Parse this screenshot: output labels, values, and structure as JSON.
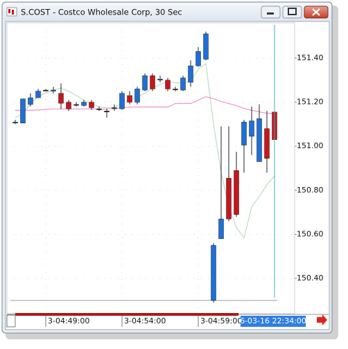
{
  "window_title": "S.COST - Costco Wholesale Corp, 30 Sec",
  "chart_data": {
    "type": "candlestick",
    "categories": [
      null,
      null,
      null,
      null,
      "3-04:49:00",
      null,
      null,
      null,
      null,
      null,
      null,
      null,
      null,
      null,
      "3-04:54:00",
      null,
      null,
      null,
      null,
      null,
      null,
      null,
      null,
      null,
      "3-04:59:00",
      null,
      null,
      null,
      null,
      null,
      null,
      null,
      null,
      null,
      null
    ],
    "open": [
      151.105,
      151.105,
      151.19,
      151.22,
      151.255,
      151.25,
      151.24,
      151.2,
      151.19,
      151.185,
      151.2,
      151.17,
      151.16,
      151.175,
      151.17,
      151.23,
      151.2,
      151.255,
      151.32,
      151.3,
      151.3,
      151.26,
      151.255,
      151.29,
      151.365,
      151.395,
      150.3,
      150.58,
      150.855,
      150.89,
      151.005,
      151.045,
      150.93,
      151.08,
      151.155
    ],
    "high": [
      151.12,
      151.215,
      151.24,
      151.26,
      151.26,
      151.27,
      151.285,
      151.21,
      151.2,
      151.21,
      151.21,
      151.18,
      151.17,
      151.19,
      151.25,
      151.25,
      151.27,
      151.33,
      151.33,
      151.32,
      151.31,
      151.27,
      151.32,
      151.39,
      151.45,
      151.52,
      150.56,
      151.09,
      151.09,
      150.975,
      151.12,
      151.18,
      151.19,
      151.16,
      151.155
    ],
    "low": [
      151.1,
      151.105,
      151.18,
      151.22,
      151.25,
      151.24,
      151.17,
      151.16,
      151.18,
      151.18,
      151.165,
      151.16,
      151.13,
      151.16,
      151.165,
      151.19,
      151.19,
      151.25,
      151.25,
      151.29,
      151.25,
      151.25,
      151.25,
      151.27,
      151.36,
      151.39,
      150.29,
      150.58,
      150.66,
      150.68,
      150.88,
      150.96,
      150.93,
      150.88,
      150.87
    ],
    "close": [
      151.11,
      151.215,
      151.22,
      151.25,
      151.255,
      151.255,
      151.195,
      151.17,
      151.19,
      151.2,
      151.175,
      151.17,
      151.16,
      151.175,
      151.24,
      151.2,
      151.26,
      151.32,
      151.26,
      151.305,
      151.26,
      151.26,
      151.31,
      151.365,
      151.43,
      151.51,
      150.55,
      150.67,
      150.67,
      150.69,
      151.11,
      151.115,
      151.125,
      150.945,
      151.03
    ],
    "up_color": "#1f6fd8",
    "down_color": "#c8161d",
    "neutral_color": "#333333",
    "lines": [
      {
        "color": "#bfe0c4",
        "values": [
          151.131,
          151.147,
          151.194,
          151.225,
          151.241,
          151.256,
          151.263,
          151.25,
          151.231,
          151.209,
          151.194,
          151.178,
          151.175,
          151.178,
          151.194,
          151.209,
          151.225,
          151.241,
          151.263,
          151.281,
          151.294,
          151.288,
          151.288,
          151.294,
          151.35,
          151.375,
          151.1,
          150.881,
          150.725,
          150.631,
          150.584,
          150.725,
          150.772,
          150.825,
          150.866
        ]
      },
      {
        "color": "#ef9bd0",
        "values": [
          151.163,
          151.163,
          151.163,
          151.165,
          151.167,
          151.169,
          151.169,
          151.169,
          151.169,
          151.169,
          151.169,
          151.169,
          151.169,
          151.172,
          151.175,
          151.178,
          151.178,
          151.178,
          151.178,
          151.178,
          151.178,
          151.194,
          151.194,
          151.194,
          151.209,
          151.225,
          151.216,
          151.203,
          151.194,
          151.184,
          151.172,
          151.163,
          151.156,
          151.15,
          151.147
        ]
      }
    ],
    "reference_line": 150.3,
    "ylim": [
      150.24,
      151.56
    ],
    "yticks": [
      {
        "value": 150.4,
        "label": "150.40"
      },
      {
        "value": 150.6,
        "label": "150.60"
      },
      {
        "value": 150.8,
        "label": "150.80"
      },
      {
        "value": 151.0,
        "label": "151.00"
      },
      {
        "value": 151.2,
        "label": "151.20"
      },
      {
        "value": 151.4,
        "label": "151.40"
      }
    ],
    "grid": true,
    "cursor_label": "6-03-16 22:34:00"
  }
}
